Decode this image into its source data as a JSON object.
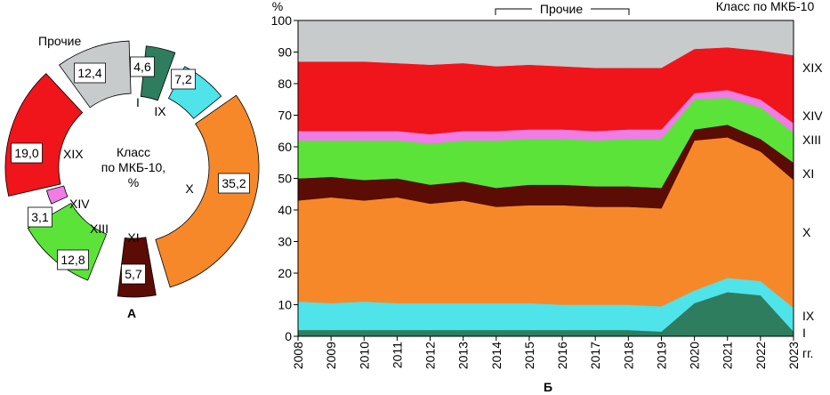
{
  "chart_data": [
    {
      "type": "pie",
      "variant": "exploded-donut",
      "panel_label": "А",
      "center_label_lines": [
        "Класс",
        "по МКБ-10,",
        "%"
      ],
      "slices": [
        {
          "label": "I",
          "value": 4.6,
          "value_text": "4,6",
          "color": "#2E7D5E"
        },
        {
          "label": "IX",
          "value": 7.2,
          "value_text": "7,2",
          "color": "#4FE3EA"
        },
        {
          "label": "X",
          "value": 35.2,
          "value_text": "35,2",
          "color": "#F7882A"
        },
        {
          "label": "XI",
          "value": 5.7,
          "value_text": "5,7",
          "color": "#5A0C05"
        },
        {
          "label": "XIII",
          "value": 12.8,
          "value_text": "12,8",
          "color": "#5BE33A"
        },
        {
          "label": "XIV",
          "value": 3.1,
          "value_text": "3,1",
          "color": "#F07CE6"
        },
        {
          "label": "XIX",
          "value": 19.0,
          "value_text": "19,0",
          "color": "#F0141B"
        },
        {
          "label": "Прочие",
          "value": 12.4,
          "value_text": "12,4",
          "color": "#C7CBCB"
        }
      ]
    },
    {
      "type": "area",
      "stacked": true,
      "panel_label": "Б",
      "y_unit": "%",
      "ylim": [
        0,
        100
      ],
      "y_ticks": [
        0,
        10,
        20,
        30,
        40,
        50,
        60,
        70,
        80,
        90,
        100
      ],
      "x_unit": "гг.",
      "x": [
        "2008",
        "2009",
        "2010",
        "2011",
        "2012",
        "2013",
        "2014",
        "2015",
        "2016",
        "2017",
        "2018",
        "2019",
        "2020",
        "2021",
        "2022",
        "2023"
      ],
      "legend_title": "Класс по МКБ-10",
      "bracket_label": "Прочие",
      "series": [
        {
          "name": "I",
          "color": "#2E7D5E",
          "values": [
            2,
            2,
            2,
            2,
            2,
            2,
            2,
            2,
            2,
            2,
            2,
            1.5,
            10.5,
            14,
            13,
            1.5
          ]
        },
        {
          "name": "IX",
          "color": "#4FE3EA",
          "values": [
            9,
            8.5,
            9,
            8.5,
            8.5,
            8.5,
            8.5,
            8.5,
            8,
            8,
            8,
            8,
            4,
            4.5,
            4.5,
            7.5
          ]
        },
        {
          "name": "X",
          "color": "#F7882A",
          "values": [
            32,
            33.5,
            32,
            33.5,
            31.5,
            32.5,
            30.5,
            31,
            31.5,
            31,
            31,
            31,
            47.5,
            44.5,
            41,
            40.5
          ]
        },
        {
          "name": "XI",
          "color": "#5A0C05",
          "values": [
            7,
            6.5,
            6.5,
            6,
            6,
            6,
            6,
            6.5,
            6.5,
            6.5,
            6.5,
            6.5,
            3.5,
            4,
            4,
            5.5
          ]
        },
        {
          "name": "XIII",
          "color": "#5BE33A",
          "values": [
            12,
            11.5,
            12.5,
            12,
            13,
            13,
            15,
            14.5,
            14.5,
            14.5,
            15,
            15.5,
            9.5,
            8.5,
            10,
            9.5
          ]
        },
        {
          "name": "XIV",
          "color": "#F07CE6",
          "values": [
            3,
            3,
            3,
            3,
            3,
            3,
            3,
            3,
            3,
            3,
            3,
            3,
            2,
            2.5,
            2.5,
            3
          ]
        },
        {
          "name": "XIX",
          "color": "#F0141B",
          "values": [
            22,
            22,
            22,
            21.5,
            22,
            21.5,
            20.5,
            20.5,
            20,
            20,
            19.5,
            19.5,
            14,
            13.5,
            15.5,
            21.5
          ]
        },
        {
          "name": "Прочие",
          "color": "#C7CBCB",
          "values": [
            13,
            13,
            13,
            13.5,
            14,
            13.5,
            14.5,
            14,
            14.5,
            15,
            15,
            15,
            9,
            8.5,
            9.5,
            11
          ]
        }
      ]
    }
  ]
}
